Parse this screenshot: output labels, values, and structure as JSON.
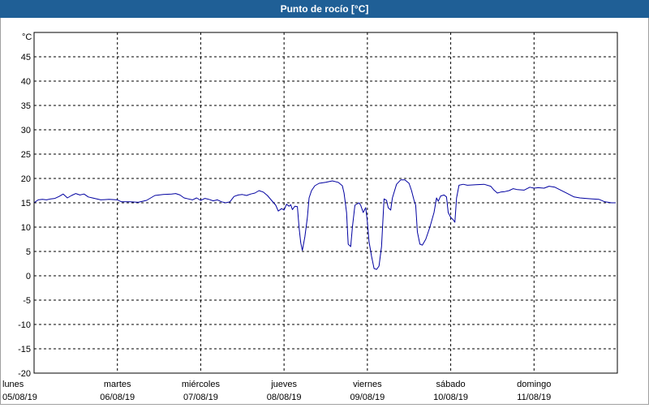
{
  "window": {
    "title": "Punto de rocío [°C]",
    "title_bar_color": "#1f5f96"
  },
  "chart_data": {
    "type": "line",
    "title": "Punto de rocío [°C]",
    "unit_label": "°C",
    "ylim": [
      -20,
      50
    ],
    "yticks": [
      -20,
      -15,
      -10,
      -5,
      0,
      5,
      10,
      15,
      20,
      25,
      30,
      35,
      40,
      45
    ],
    "xlim_days": [
      0,
      7
    ],
    "grid": true,
    "x_ticks": [
      {
        "day": "lunes",
        "date": "05/08/19"
      },
      {
        "day": "martes",
        "date": "06/08/19"
      },
      {
        "day": "miércoles",
        "date": "07/08/19"
      },
      {
        "day": "jueves",
        "date": "08/08/19"
      },
      {
        "day": "viernes",
        "date": "09/08/19"
      },
      {
        "day": "sábado",
        "date": "10/08/19"
      },
      {
        "day": "domingo",
        "date": "11/08/19"
      }
    ],
    "series": [
      {
        "color": "#0000a0",
        "points": [
          [
            0,
            15.0
          ],
          [
            0.05,
            15.6
          ],
          [
            0.1,
            15.7
          ],
          [
            0.15,
            15.6
          ],
          [
            0.2,
            15.8
          ],
          [
            0.25,
            15.9
          ],
          [
            0.3,
            16.3
          ],
          [
            0.35,
            16.8
          ],
          [
            0.4,
            16.0
          ],
          [
            0.45,
            16.5
          ],
          [
            0.5,
            16.9
          ],
          [
            0.55,
            16.6
          ],
          [
            0.6,
            16.8
          ],
          [
            0.65,
            16.2
          ],
          [
            0.7,
            16.0
          ],
          [
            0.8,
            15.6
          ],
          [
            0.9,
            15.7
          ],
          [
            1.0,
            15.6
          ],
          [
            1.05,
            15.2
          ],
          [
            1.15,
            15.2
          ],
          [
            1.25,
            15.1
          ],
          [
            1.35,
            15.5
          ],
          [
            1.45,
            16.5
          ],
          [
            1.55,
            16.7
          ],
          [
            1.65,
            16.8
          ],
          [
            1.7,
            16.9
          ],
          [
            1.75,
            16.6
          ],
          [
            1.8,
            16.0
          ],
          [
            1.85,
            15.8
          ],
          [
            1.9,
            15.6
          ],
          [
            1.95,
            16.0
          ],
          [
            2.0,
            15.5
          ],
          [
            2.05,
            15.9
          ],
          [
            2.1,
            15.7
          ],
          [
            2.15,
            15.4
          ],
          [
            2.2,
            15.6
          ],
          [
            2.25,
            15.2
          ],
          [
            2.3,
            15.0
          ],
          [
            2.35,
            15.2
          ],
          [
            2.4,
            16.3
          ],
          [
            2.45,
            16.6
          ],
          [
            2.5,
            16.7
          ],
          [
            2.55,
            16.5
          ],
          [
            2.6,
            16.8
          ],
          [
            2.65,
            17.0
          ],
          [
            2.7,
            17.5
          ],
          [
            2.75,
            17.2
          ],
          [
            2.8,
            16.5
          ],
          [
            2.85,
            15.5
          ],
          [
            2.9,
            14.5
          ],
          [
            2.93,
            13.3
          ],
          [
            2.97,
            13.8
          ],
          [
            3.0,
            13.5
          ],
          [
            3.03,
            14.7
          ],
          [
            3.06,
            14.3
          ],
          [
            3.08,
            14.6
          ],
          [
            3.1,
            13.6
          ],
          [
            3.13,
            14.3
          ],
          [
            3.16,
            14.2
          ],
          [
            3.18,
            10.0
          ],
          [
            3.2,
            6.8
          ],
          [
            3.22,
            5.2
          ],
          [
            3.25,
            8.0
          ],
          [
            3.28,
            12.0
          ],
          [
            3.3,
            16.0
          ],
          [
            3.33,
            17.5
          ],
          [
            3.37,
            18.5
          ],
          [
            3.42,
            19.0
          ],
          [
            3.5,
            19.2
          ],
          [
            3.58,
            19.5
          ],
          [
            3.65,
            19.2
          ],
          [
            3.7,
            18.5
          ],
          [
            3.72,
            17.0
          ],
          [
            3.75,
            13.0
          ],
          [
            3.77,
            6.5
          ],
          [
            3.8,
            6.0
          ],
          [
            3.82,
            10.0
          ],
          [
            3.85,
            14.5
          ],
          [
            3.9,
            15.0
          ],
          [
            3.92,
            14.5
          ],
          [
            3.95,
            13.0
          ],
          [
            3.98,
            14.0
          ],
          [
            4.0,
            11.0
          ],
          [
            4.02,
            7.0
          ],
          [
            4.05,
            4.0
          ],
          [
            4.08,
            1.5
          ],
          [
            4.11,
            1.3
          ],
          [
            4.14,
            2.0
          ],
          [
            4.17,
            6.0
          ],
          [
            4.2,
            15.8
          ],
          [
            4.23,
            15.5
          ],
          [
            4.25,
            14.0
          ],
          [
            4.28,
            13.5
          ],
          [
            4.3,
            16.0
          ],
          [
            4.35,
            18.8
          ],
          [
            4.4,
            19.7
          ],
          [
            4.45,
            19.7
          ],
          [
            4.5,
            19.0
          ],
          [
            4.53,
            17.5
          ],
          [
            4.56,
            15.5
          ],
          [
            4.58,
            14.5
          ],
          [
            4.6,
            9.0
          ],
          [
            4.63,
            6.5
          ],
          [
            4.66,
            6.3
          ],
          [
            4.7,
            7.5
          ],
          [
            4.75,
            10.0
          ],
          [
            4.8,
            13.0
          ],
          [
            4.83,
            16.0
          ],
          [
            4.85,
            15.3
          ],
          [
            4.88,
            16.4
          ],
          [
            4.92,
            16.6
          ],
          [
            4.95,
            16.2
          ],
          [
            4.97,
            13.0
          ],
          [
            5.0,
            12.0
          ],
          [
            5.03,
            11.5
          ],
          [
            5.05,
            11.0
          ],
          [
            5.07,
            16.0
          ],
          [
            5.1,
            18.6
          ],
          [
            5.15,
            18.8
          ],
          [
            5.2,
            18.6
          ],
          [
            5.3,
            18.7
          ],
          [
            5.4,
            18.8
          ],
          [
            5.48,
            18.4
          ],
          [
            5.52,
            17.6
          ],
          [
            5.56,
            17.0
          ],
          [
            5.6,
            17.2
          ],
          [
            5.65,
            17.3
          ],
          [
            5.7,
            17.5
          ],
          [
            5.75,
            17.9
          ],
          [
            5.8,
            17.7
          ],
          [
            5.88,
            17.6
          ],
          [
            5.95,
            18.2
          ],
          [
            6.0,
            18.0
          ],
          [
            6.05,
            18.1
          ],
          [
            6.12,
            18.0
          ],
          [
            6.18,
            18.4
          ],
          [
            6.25,
            18.2
          ],
          [
            6.32,
            17.6
          ],
          [
            6.4,
            16.9
          ],
          [
            6.48,
            16.2
          ],
          [
            6.55,
            16.0
          ],
          [
            6.62,
            15.9
          ],
          [
            6.7,
            15.8
          ],
          [
            6.78,
            15.7
          ],
          [
            6.85,
            15.2
          ],
          [
            6.93,
            15.0
          ],
          [
            6.98,
            15.0
          ]
        ]
      }
    ]
  }
}
